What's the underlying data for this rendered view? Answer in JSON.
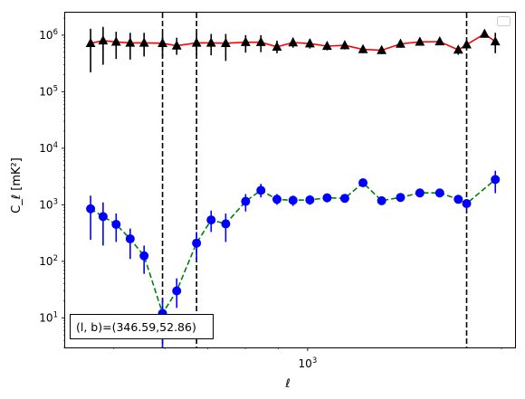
{
  "chart_data": {
    "type": "scatter",
    "xscale": "log",
    "yscale": "log",
    "xlim": [
      420,
      2100
    ],
    "ylim": [
      3,
      2500000
    ],
    "xlabel": "ℓ",
    "ylabel": "C_ℓ  [mK²]",
    "x_major_ticks": [
      {
        "value": 1000,
        "base": "10",
        "exp": "3"
      }
    ],
    "y_major_ticks": [
      {
        "value": 10,
        "base": "10",
        "exp": "1"
      },
      {
        "value": 100,
        "base": "10",
        "exp": "2"
      },
      {
        "value": 1000,
        "base": "10",
        "exp": "3"
      },
      {
        "value": 10000,
        "base": "10",
        "exp": "4"
      },
      {
        "value": 100000,
        "base": "10",
        "exp": "5"
      },
      {
        "value": 1000000,
        "base": "10",
        "exp": "6"
      }
    ],
    "legend": {
      "placement": "upper right",
      "entries": []
    },
    "annotation": {
      "text": "(l, b)=(346.59,52.86)",
      "placement": "lower left"
    },
    "vlines": [
      {
        "x": 595,
        "color": "#000000",
        "style": "dashed"
      },
      {
        "x": 672,
        "color": "#000000",
        "style": "dashed"
      },
      {
        "x": 1766,
        "color": "#000000",
        "style": "dashed"
      }
    ],
    "series": [
      {
        "marker": "triangle",
        "marker_color": "#000000",
        "line_color": "#ff0000",
        "line_style": "solid",
        "points": [
          {
            "x": 460,
            "y": 720000,
            "ylo": 220000,
            "yhi": 1300000
          },
          {
            "x": 481,
            "y": 800000,
            "ylo": 300000,
            "yhi": 1400000
          },
          {
            "x": 504,
            "y": 760000,
            "ylo": 380000,
            "yhi": 1150000
          },
          {
            "x": 530,
            "y": 730000,
            "ylo": 370000,
            "yhi": 1100000
          },
          {
            "x": 557,
            "y": 730000,
            "ylo": 420000,
            "yhi": 1100000
          },
          {
            "x": 595,
            "y": 720000,
            "ylo": 420000,
            "yhi": 1050000
          },
          {
            "x": 626,
            "y": 650000,
            "ylo": 450000,
            "yhi": 900000
          },
          {
            "x": 672,
            "y": 730000,
            "ylo": 450000,
            "yhi": 1050000
          },
          {
            "x": 708,
            "y": 730000,
            "ylo": 440000,
            "yhi": 1050000
          },
          {
            "x": 746,
            "y": 720000,
            "ylo": 350000,
            "yhi": 1050000
          },
          {
            "x": 801,
            "y": 750000,
            "ylo": 490000,
            "yhi": 1000000
          },
          {
            "x": 846,
            "y": 750000,
            "ylo": 500000,
            "yhi": 1000000
          },
          {
            "x": 896,
            "y": 620000,
            "ylo": 480000,
            "yhi": 800000
          },
          {
            "x": 949,
            "y": 740000,
            "ylo": 600000,
            "yhi": 900000
          },
          {
            "x": 1008,
            "y": 710000,
            "ylo": 580000,
            "yhi": 860000
          },
          {
            "x": 1072,
            "y": 640000,
            "ylo": 540000,
            "yhi": 750000
          },
          {
            "x": 1142,
            "y": 660000,
            "ylo": 560000,
            "yhi": 770000
          },
          {
            "x": 1219,
            "y": 560000,
            "ylo": 480000,
            "yhi": 650000
          },
          {
            "x": 1303,
            "y": 540000,
            "ylo": 460000,
            "yhi": 620000
          },
          {
            "x": 1394,
            "y": 700000,
            "ylo": 600000,
            "yhi": 800000
          },
          {
            "x": 1494,
            "y": 760000,
            "ylo": 660000,
            "yhi": 870000
          },
          {
            "x": 1604,
            "y": 770000,
            "ylo": 670000,
            "yhi": 880000
          },
          {
            "x": 1714,
            "y": 550000,
            "ylo": 450000,
            "yhi": 650000
          },
          {
            "x": 1766,
            "y": 680000,
            "ylo": 580000,
            "yhi": 800000
          },
          {
            "x": 1883,
            "y": 1050000,
            "ylo": 900000,
            "yhi": 1200000
          },
          {
            "x": 1957,
            "y": 770000,
            "ylo": 480000,
            "yhi": 1100000
          }
        ]
      },
      {
        "marker": "circle",
        "marker_color": "#0000ff",
        "line_color": "#008000",
        "line_style": "dashed",
        "points": [
          {
            "x": 460,
            "y": 850,
            "ylo": 240,
            "yhi": 1450
          },
          {
            "x": 481,
            "y": 620,
            "ylo": 190,
            "yhi": 1100
          },
          {
            "x": 504,
            "y": 450,
            "ylo": 220,
            "yhi": 700
          },
          {
            "x": 530,
            "y": 250,
            "ylo": 110,
            "yhi": 380
          },
          {
            "x": 557,
            "y": 125,
            "ylo": 60,
            "yhi": 190
          },
          {
            "x": 595,
            "y": 12,
            "ylo": 3,
            "yhi": 22
          },
          {
            "x": 626,
            "y": 30,
            "ylo": 15,
            "yhi": 50
          },
          {
            "x": 672,
            "y": 210,
            "ylo": 110,
            "yhi": 330
          },
          {
            "x": 708,
            "y": 540,
            "ylo": 330,
            "yhi": 790
          },
          {
            "x": 746,
            "y": 460,
            "ylo": 220,
            "yhi": 700
          },
          {
            "x": 801,
            "y": 1150,
            "ylo": 760,
            "yhi": 1550
          },
          {
            "x": 846,
            "y": 1800,
            "ylo": 1350,
            "yhi": 2350
          },
          {
            "x": 896,
            "y": 1250,
            "ylo": 1000,
            "yhi": 1550
          },
          {
            "x": 949,
            "y": 1200,
            "ylo": 950,
            "yhi": 1450
          },
          {
            "x": 1008,
            "y": 1220,
            "ylo": 1000,
            "yhi": 1480
          },
          {
            "x": 1072,
            "y": 1330,
            "ylo": 1100,
            "yhi": 1550
          },
          {
            "x": 1142,
            "y": 1300,
            "ylo": 1100,
            "yhi": 1500
          },
          {
            "x": 1219,
            "y": 2450,
            "ylo": 2150,
            "yhi": 2750
          },
          {
            "x": 1303,
            "y": 1180,
            "ylo": 1000,
            "yhi": 1350
          },
          {
            "x": 1394,
            "y": 1350,
            "ylo": 1150,
            "yhi": 1550
          },
          {
            "x": 1494,
            "y": 1620,
            "ylo": 1420,
            "yhi": 1820
          },
          {
            "x": 1604,
            "y": 1620,
            "ylo": 1400,
            "yhi": 1850
          },
          {
            "x": 1714,
            "y": 1250,
            "ylo": 1050,
            "yhi": 1480
          },
          {
            "x": 1766,
            "y": 1050,
            "ylo": 850,
            "yhi": 1250
          },
          {
            "x": 1957,
            "y": 2800,
            "ylo": 1600,
            "yhi": 4000
          }
        ]
      }
    ]
  }
}
